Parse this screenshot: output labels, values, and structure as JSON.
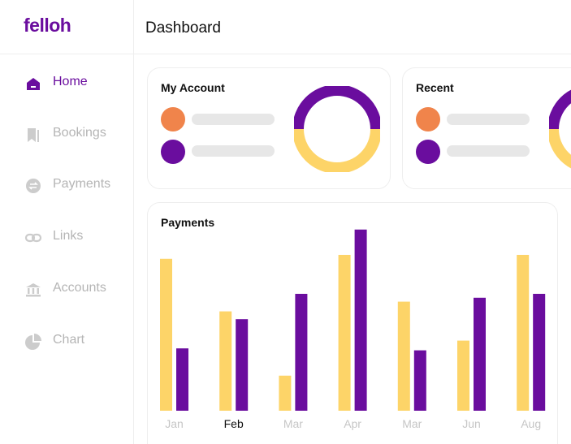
{
  "app": {
    "logo": "felloh"
  },
  "sidebar": {
    "items": [
      {
        "label": "Home",
        "icon": "home-icon",
        "active": true
      },
      {
        "label": "Bookings",
        "icon": "bookmark-icon",
        "active": false
      },
      {
        "label": "Payments",
        "icon": "payments-icon",
        "active": false
      },
      {
        "label": "Links",
        "icon": "link-icon",
        "active": false
      },
      {
        "label": "Accounts",
        "icon": "bank-icon",
        "active": false
      },
      {
        "label": "Chart",
        "icon": "pie-chart-icon",
        "active": false
      }
    ]
  },
  "header": {
    "title": "Dashboard"
  },
  "cards": {
    "my_account": {
      "title": "My Account"
    },
    "recent": {
      "title": "Recent"
    },
    "payments": {
      "title": "Payments"
    }
  },
  "colors": {
    "brand": "#6a0d9e",
    "yellow": "#fdd468",
    "orange": "#f0844b",
    "placeholder": "#e7e7e7",
    "muted": "#b5b5b5"
  },
  "chart_data": {
    "type": "bar",
    "title": "Payments",
    "categories": [
      "Jan",
      "Feb",
      "Mar",
      "Apr",
      "Mar",
      "Jun",
      "Aug"
    ],
    "highlighted_category": "Feb",
    "series": [
      {
        "color": "#fdd468",
        "values": [
          78,
          51,
          18,
          80,
          56,
          36,
          80
        ]
      },
      {
        "color": "#6a0d9e",
        "values": [
          32,
          47,
          60,
          93,
          31,
          58,
          60
        ]
      }
    ],
    "ylim": [
      0,
      100
    ],
    "grid": false,
    "legend": "none"
  }
}
